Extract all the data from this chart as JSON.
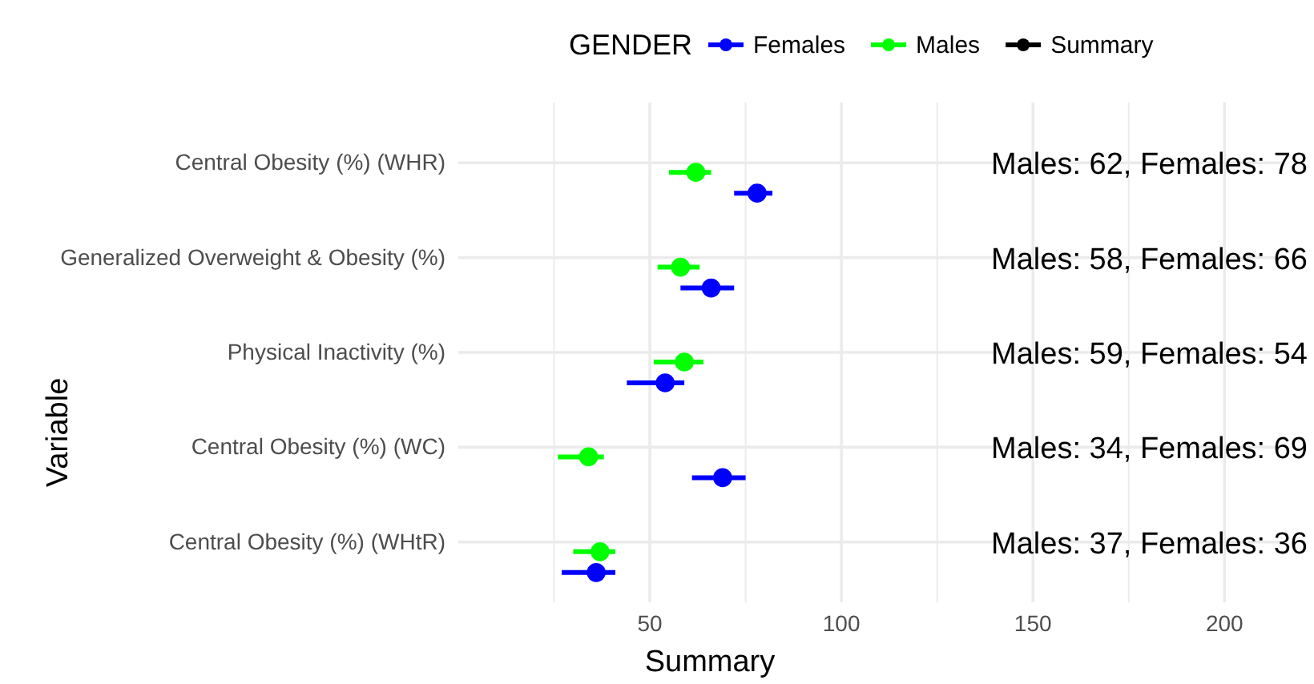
{
  "chart_data": {
    "type": "scatter",
    "orientation": "horizontal",
    "xlabel": "Summary",
    "ylabel": "Variable",
    "legend_title": "GENDER",
    "legend": "top",
    "grid": true,
    "marker": "circle",
    "categories": [
      "Central Obesity (%) (WHR)",
      "Generalized Overweight & Obesity (%)",
      "Physical Inactivity (%)",
      "Central Obesity (%) (WC)",
      "Central Obesity (%) (WHtR)"
    ],
    "xlim": [
      0,
      215
    ],
    "xticks": [
      {
        "value": 25,
        "label": null
      },
      50,
      {
        "value": 75,
        "label": null
      },
      100,
      {
        "value": 125,
        "label": null
      },
      150,
      {
        "value": 175,
        "label": null
      },
      200
    ],
    "series": [
      {
        "name": "Females",
        "color": "#0000ff",
        "values": [
          78,
          66,
          54,
          69,
          36
        ],
        "errors": [
          [
            72,
            82
          ],
          [
            58,
            72
          ],
          [
            44,
            59
          ],
          [
            61,
            75
          ],
          [
            27,
            41
          ]
        ]
      },
      {
        "name": "Males",
        "color": "#00ff00",
        "values": [
          62,
          58,
          59,
          34,
          37
        ],
        "errors": [
          [
            55,
            66
          ],
          [
            52,
            63
          ],
          [
            51,
            64
          ],
          [
            26,
            38
          ],
          [
            30,
            41
          ]
        ]
      },
      {
        "name": "Summary",
        "color": "#000000",
        "values": [
          null,
          null,
          null,
          null,
          null
        ]
      }
    ],
    "annotations": [
      "Males: 62, Females: 78",
      "Males: 58, Females: 66",
      "Males: 59, Females: 54",
      "Males: 34, Females: 69",
      "Males: 37, Females: 36"
    ]
  }
}
